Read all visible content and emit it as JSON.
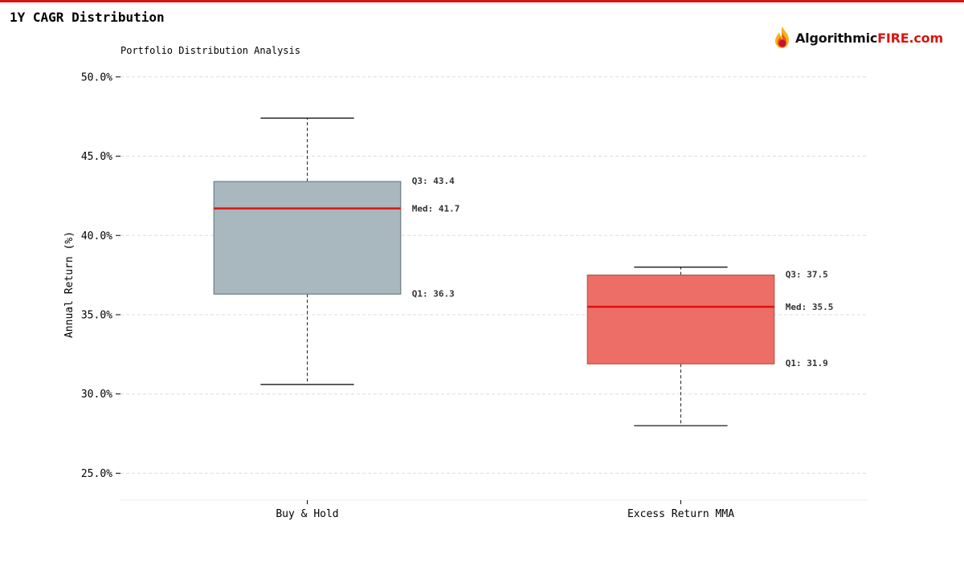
{
  "header": {
    "title": "1Y CAGR Distribution",
    "logo_text_a": "Algorithmic",
    "logo_text_b": "FIRE.com",
    "logo_icon": "flame-icon"
  },
  "colors": {
    "accent": "#d9150f",
    "box_buy_hold": "#a9b7be",
    "box_mma": "#ed6e66",
    "median": "#d9150f"
  },
  "chart_data": {
    "type": "box",
    "subtitle": "Portfolio Distribution Analysis",
    "ylabel": "Annual Return (%)",
    "ylim": [
      23.3,
      50.8
    ],
    "yticks": [
      25,
      30,
      35,
      40,
      45,
      50
    ],
    "ytick_labels": [
      "25.0%",
      "30.0%",
      "35.0%",
      "40.0%",
      "45.0%",
      "50.0%"
    ],
    "grid": true,
    "series": [
      {
        "name": "Buy & Hold",
        "whisker_low": 30.6,
        "q1": 36.3,
        "median": 41.7,
        "q3": 43.4,
        "whisker_high": 47.4,
        "q1_label": "Q1: 36.3",
        "median_label": "Med: 41.7",
        "q3_label": "Q3: 43.4"
      },
      {
        "name": "Excess Return MMA",
        "whisker_low": 28.0,
        "q1": 31.9,
        "median": 35.5,
        "q3": 37.5,
        "whisker_high": 38.0,
        "q1_label": "Q1: 31.9",
        "median_label": "Med: 35.5",
        "q3_label": "Q3: 37.5"
      }
    ]
  }
}
